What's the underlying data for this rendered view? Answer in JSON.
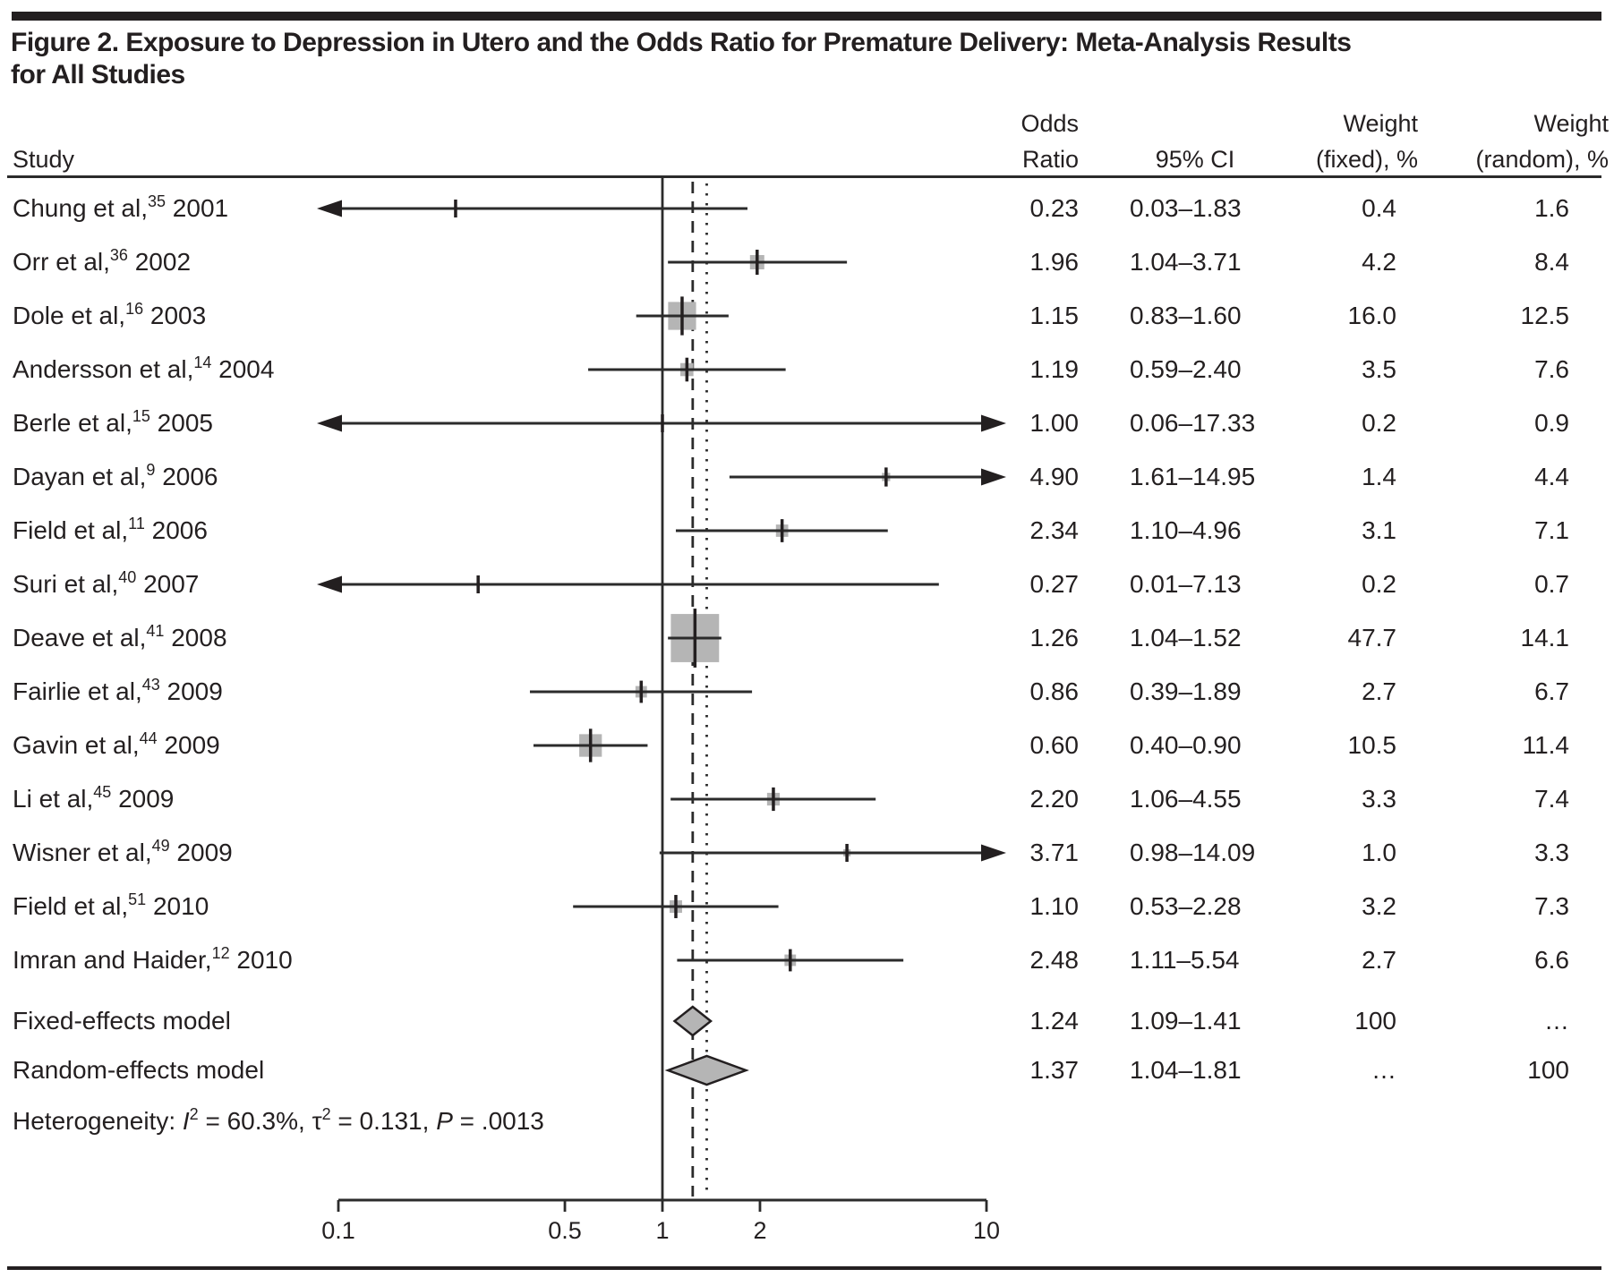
{
  "colors": {
    "ink": "#231f20",
    "line": "#2b2b2b",
    "marker_grey": "#b5b5b5"
  },
  "chart_data": {
    "type": "forest",
    "title": "Figure 2. Exposure to Depression in Utero and the Odds Ratio for Premature Delivery: Meta-Analysis Results\nfor All Studies",
    "columns": {
      "study": "Study",
      "or1": "Odds",
      "or2": "Ratio",
      "ci": "95% CI",
      "wf1": "Weight",
      "wf2": "(fixed), %",
      "wr1": "Weight",
      "wr2": "(random), %"
    },
    "axis": {
      "scale": "log",
      "min": 0.1,
      "max": 10,
      "ticks": [
        0.1,
        0.5,
        1,
        2,
        10
      ],
      "tick_labels": [
        "0.1",
        "0.5",
        "1",
        "2",
        "10"
      ],
      "ref_line": 1,
      "fixed_line": 1.24,
      "random_line": 1.37
    },
    "studies": [
      {
        "name": "Chung et al,",
        "ref": "35",
        "year": "2001",
        "or": 0.23,
        "ci_low": 0.03,
        "ci_high": 1.83,
        "w_fixed_num": 0.4,
        "or_text": "0.23",
        "ci_text": "0.03–1.83",
        "wf_text": "0.4",
        "wr_text": "1.6"
      },
      {
        "name": "Orr et al,",
        "ref": "36",
        "year": "2002",
        "or": 1.96,
        "ci_low": 1.04,
        "ci_high": 3.71,
        "w_fixed_num": 4.2,
        "or_text": "1.96",
        "ci_text": "1.04–3.71",
        "wf_text": "4.2",
        "wr_text": "8.4"
      },
      {
        "name": "Dole et al,",
        "ref": "16",
        "year": "2003",
        "or": 1.15,
        "ci_low": 0.83,
        "ci_high": 1.6,
        "w_fixed_num": 16.0,
        "or_text": "1.15",
        "ci_text": "0.83–1.60",
        "wf_text": "16.0",
        "wr_text": "12.5"
      },
      {
        "name": "Andersson et al,",
        "ref": "14",
        "year": "2004",
        "or": 1.19,
        "ci_low": 0.59,
        "ci_high": 2.4,
        "w_fixed_num": 3.5,
        "or_text": "1.19",
        "ci_text": "0.59–2.40",
        "wf_text": "3.5",
        "wr_text": "7.6"
      },
      {
        "name": "Berle et al,",
        "ref": "15",
        "year": "2005",
        "or": 1.0,
        "ci_low": 0.06,
        "ci_high": 17.33,
        "w_fixed_num": 0.2,
        "or_text": "1.00",
        "ci_text": "0.06–17.33",
        "wf_text": "0.2",
        "wr_text": "0.9"
      },
      {
        "name": "Dayan et al,",
        "ref": "9",
        "year": "2006",
        "or": 4.9,
        "ci_low": 1.61,
        "ci_high": 14.95,
        "w_fixed_num": 1.4,
        "or_text": "4.90",
        "ci_text": "1.61–14.95",
        "wf_text": "1.4",
        "wr_text": "4.4"
      },
      {
        "name": "Field et al,",
        "ref": "11",
        "year": "2006",
        "or": 2.34,
        "ci_low": 1.1,
        "ci_high": 4.96,
        "w_fixed_num": 3.1,
        "or_text": "2.34",
        "ci_text": "1.10–4.96",
        "wf_text": "3.1",
        "wr_text": "7.1"
      },
      {
        "name": "Suri et al,",
        "ref": "40",
        "year": "2007",
        "or": 0.27,
        "ci_low": 0.01,
        "ci_high": 7.13,
        "w_fixed_num": 0.2,
        "or_text": "0.27",
        "ci_text": "0.01–7.13",
        "wf_text": "0.2",
        "wr_text": "0.7"
      },
      {
        "name": "Deave et al,",
        "ref": "41",
        "year": "2008",
        "or": 1.26,
        "ci_low": 1.04,
        "ci_high": 1.52,
        "w_fixed_num": 47.7,
        "or_text": "1.26",
        "ci_text": "1.04–1.52",
        "wf_text": "47.7",
        "wr_text": "14.1"
      },
      {
        "name": "Fairlie et al,",
        "ref": "43",
        "year": "2009",
        "or": 0.86,
        "ci_low": 0.39,
        "ci_high": 1.89,
        "w_fixed_num": 2.7,
        "or_text": "0.86",
        "ci_text": "0.39–1.89",
        "wf_text": "2.7",
        "wr_text": "6.7"
      },
      {
        "name": "Gavin et al,",
        "ref": "44",
        "year": "2009",
        "or": 0.6,
        "ci_low": 0.4,
        "ci_high": 0.9,
        "w_fixed_num": 10.5,
        "or_text": "0.60",
        "ci_text": "0.40–0.90",
        "wf_text": "10.5",
        "wr_text": "11.4"
      },
      {
        "name": "Li et al,",
        "ref": "45",
        "year": "2009",
        "or": 2.2,
        "ci_low": 1.06,
        "ci_high": 4.55,
        "w_fixed_num": 3.3,
        "or_text": "2.20",
        "ci_text": "1.06–4.55",
        "wf_text": "3.3",
        "wr_text": "7.4"
      },
      {
        "name": "Wisner et al,",
        "ref": "49",
        "year": "2009",
        "or": 3.71,
        "ci_low": 0.98,
        "ci_high": 14.09,
        "w_fixed_num": 1.0,
        "or_text": "3.71",
        "ci_text": "0.98–14.09",
        "wf_text": "1.0",
        "wr_text": "3.3"
      },
      {
        "name": "Field et al,",
        "ref": "51",
        "year": "2010",
        "or": 1.1,
        "ci_low": 0.53,
        "ci_high": 2.28,
        "w_fixed_num": 3.2,
        "or_text": "1.10",
        "ci_text": "0.53–2.28",
        "wf_text": "3.2",
        "wr_text": "7.3"
      },
      {
        "name": "Imran and Haider,",
        "ref": "12",
        "year": "2010",
        "or": 2.48,
        "ci_low": 1.11,
        "ci_high": 5.54,
        "w_fixed_num": 2.7,
        "or_text": "2.48",
        "ci_text": "1.11–5.54",
        "wf_text": "2.7",
        "wr_text": "6.6"
      }
    ],
    "models": [
      {
        "name": "Fixed-effects model",
        "or": 1.24,
        "ci_low": 1.09,
        "ci_high": 1.41,
        "or_text": "1.24",
        "ci_text": "1.09–1.41",
        "wf_text": "100",
        "wr_text": "…"
      },
      {
        "name": "Random-effects model",
        "or": 1.37,
        "ci_low": 1.04,
        "ci_high": 1.81,
        "or_text": "1.37",
        "ci_text": "1.04–1.81",
        "wf_text": "…",
        "wr_text": "100"
      }
    ],
    "heterogeneity": [
      {
        "t": "Heterogeneity: ",
        "style": "normal"
      },
      {
        "t": "I",
        "style": "italic"
      },
      {
        "t": "2",
        "style": "sup"
      },
      {
        "t": " = 60.3%, ",
        "style": "normal"
      },
      {
        "t": "τ",
        "style": "normal"
      },
      {
        "t": "2",
        "style": "sup"
      },
      {
        "t": " = 0.131, ",
        "style": "normal"
      },
      {
        "t": "P",
        "style": "italic"
      },
      {
        "t": " = .0013",
        "style": "normal"
      }
    ]
  }
}
